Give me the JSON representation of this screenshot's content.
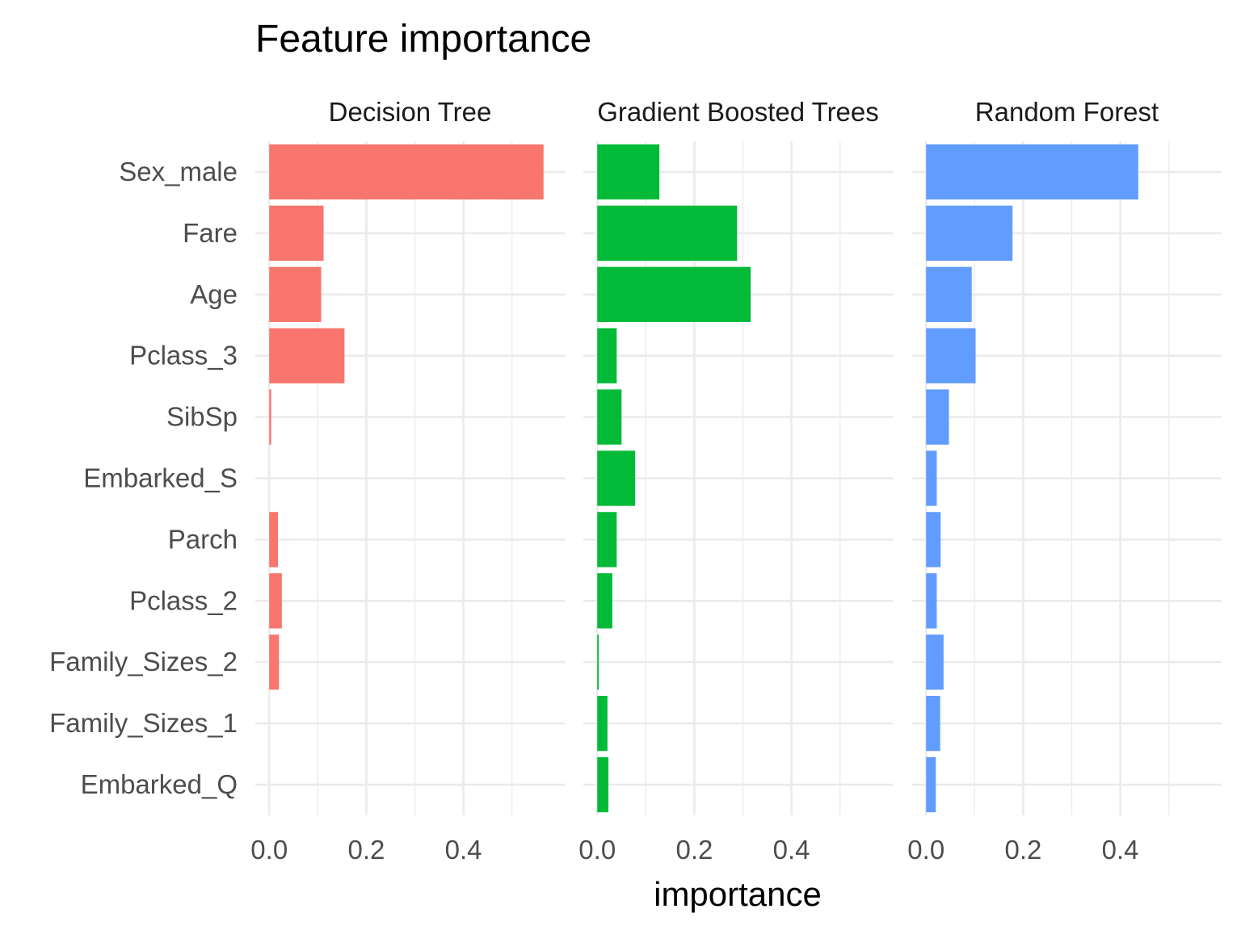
{
  "chart_data": {
    "type": "bar",
    "orientation": "horizontal",
    "title": "Feature importance",
    "xlabel": "importance",
    "ylabel": "",
    "xlim": [
      0,
      0.58
    ],
    "x_ticks": [
      0.0,
      0.2,
      0.4
    ],
    "x_tick_labels": [
      "0.0",
      "0.2",
      "0.4"
    ],
    "grid": true,
    "legend": "none",
    "categories": [
      "Sex_male",
      "Fare",
      "Age",
      "Pclass_3",
      "SibSp",
      "Embarked_S",
      "Parch",
      "Pclass_2",
      "Family_Sizes_2",
      "Family_Sizes_1",
      "Embarked_Q"
    ],
    "panels": [
      {
        "name": "Decision Tree",
        "color": "#F8766D",
        "values": [
          0.565,
          0.112,
          0.107,
          0.155,
          0.004,
          0.0,
          0.018,
          0.026,
          0.02,
          0.0,
          0.0
        ]
      },
      {
        "name": "Gradient Boosted Trees",
        "color": "#00BA38",
        "values": [
          0.128,
          0.288,
          0.316,
          0.04,
          0.05,
          0.078,
          0.04,
          0.031,
          0.003,
          0.021,
          0.023
        ]
      },
      {
        "name": "Random Forest",
        "color": "#619CFF",
        "values": [
          0.437,
          0.178,
          0.094,
          0.102,
          0.047,
          0.022,
          0.03,
          0.022,
          0.036,
          0.029,
          0.02
        ]
      }
    ]
  }
}
